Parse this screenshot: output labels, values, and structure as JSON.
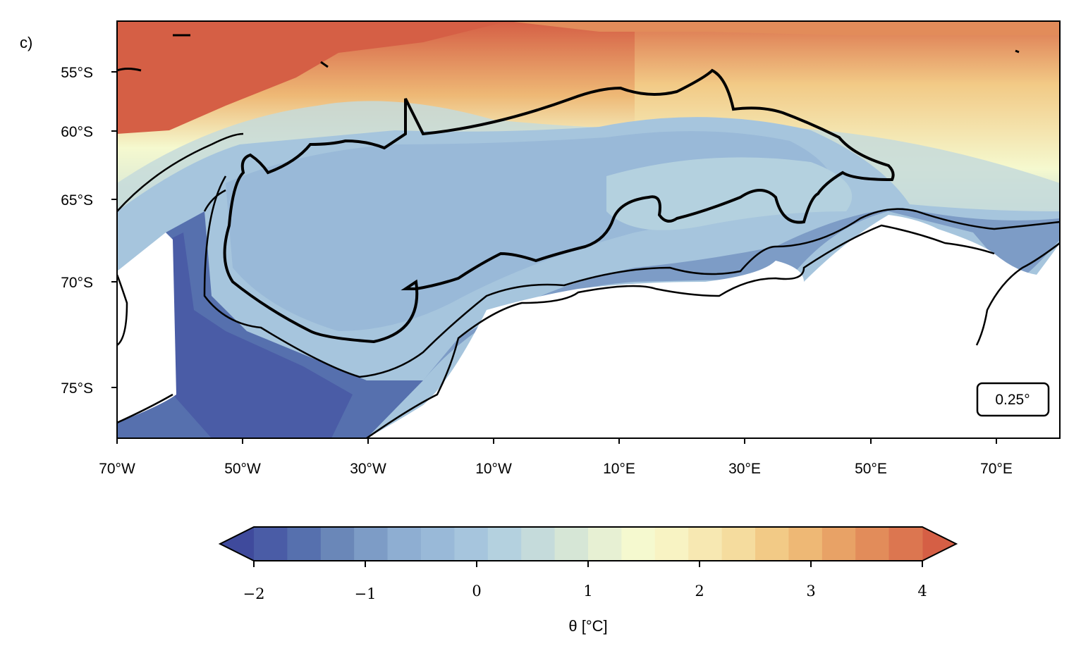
{
  "figure": {
    "panel_label": "c)",
    "resolution_label": "0.25°"
  },
  "map": {
    "lat_ticks": [
      "55°S",
      "60°S",
      "65°S",
      "70°S",
      "75°S"
    ],
    "lon_ticks": [
      "70°W",
      "50°W",
      "30°W",
      "10°W",
      "10°E",
      "30°E",
      "50°E",
      "70°E"
    ],
    "lon_range": [
      -70,
      80
    ],
    "lat_range": [
      -78,
      -51
    ],
    "field": "potential temperature",
    "colormap": "RdYlBu_r",
    "coastline_color": "#000000"
  },
  "colorbar": {
    "title": "θ [°C]",
    "tick_labels": [
      "−2",
      "−1",
      "0",
      "1",
      "2",
      "3",
      "4"
    ],
    "range": [
      -2,
      4
    ],
    "extend": "both",
    "colors": [
      "#3f4a9c",
      "#4a5ca6",
      "#5670ae",
      "#6a87b8",
      "#7d9cc6",
      "#8eaed2",
      "#99b9d8",
      "#a6c5dd",
      "#b4d1df",
      "#c5dbdb",
      "#d6e6d6",
      "#e7f0d3",
      "#f5f9cf",
      "#f8f3c3",
      "#f7e8b2",
      "#f5dc9e",
      "#f2ca86",
      "#eeb875",
      "#e8a266",
      "#e28c5a",
      "#dc7650",
      "#d55f45"
    ]
  }
}
